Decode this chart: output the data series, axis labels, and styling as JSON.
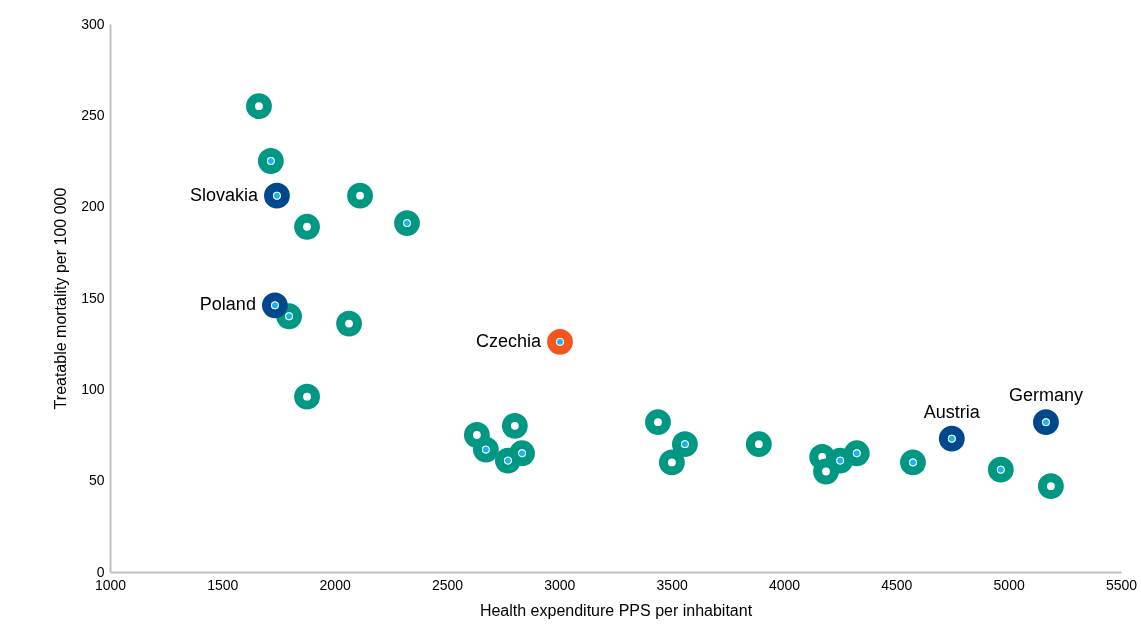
{
  "chart_data": {
    "type": "scatter",
    "xlabel": "Health expenditure PPS per inhabitant",
    "ylabel": "Treatable mortality per 100 000",
    "xlim": [
      1000,
      5500
    ],
    "xticks": [
      1000,
      1500,
      2000,
      2500,
      3000,
      3500,
      4000,
      4500,
      5000,
      5500
    ],
    "ylim": [
      0,
      300
    ],
    "yticks": [
      0,
      50,
      100,
      150,
      200,
      250,
      300
    ],
    "grid": false,
    "series": [
      {
        "x": [
          1663,
          1716,
          2113,
          1877,
          2322,
          1797,
          2064,
          1877,
          2633,
          2673,
          2802,
          2834,
          2771,
          3439,
          3559,
          3501,
          3888,
          4170,
          4187,
          4250,
          4324,
          4574,
          4965,
          5188,
          3003,
          1743,
          1734,
          4747,
          5166
        ],
        "values": [
          255,
          225,
          206,
          189,
          191,
          140,
          136,
          96,
          75,
          67,
          80,
          65,
          61,
          82,
          70,
          60,
          70,
          63,
          55,
          61,
          65,
          60,
          56,
          47,
          126,
          206,
          146,
          73,
          82
        ],
        "colors": [
          "#009883",
          "#009883",
          "#009883",
          "#009883",
          "#009883",
          "#009883",
          "#009883",
          "#009883",
          "#009883",
          "#009883",
          "#009883",
          "#009883",
          "#009883",
          "#009883",
          "#009883",
          "#009883",
          "#009883",
          "#009883",
          "#009883",
          "#009883",
          "#009883",
          "#009883",
          "#009883",
          "#009883",
          "#f5551f",
          "#00488d",
          "#00488d",
          "#00488d",
          "#00488d"
        ]
      },
      {
        "color": "#1ab3ec",
        "x": [
          1716,
          2322,
          1797,
          2673,
          2834,
          2771,
          3559,
          4250,
          4324,
          4574,
          4965,
          3003,
          1743,
          1734,
          4747,
          5166
        ],
        "values": [
          225,
          191,
          140,
          67,
          65,
          61,
          70,
          61,
          65,
          60,
          56,
          126,
          206,
          146,
          73,
          82
        ]
      }
    ],
    "annotations": [
      {
        "text": "Slovakia",
        "x": 1743,
        "y": 206
      },
      {
        "text": "Poland",
        "x": 1734,
        "y": 146
      },
      {
        "text": "Czechia",
        "x": 3003,
        "y": 126
      },
      {
        "text": "Austria",
        "x": 4747,
        "y": 73
      },
      {
        "text": "Germany",
        "x": 5166,
        "y": 82
      }
    ]
  }
}
